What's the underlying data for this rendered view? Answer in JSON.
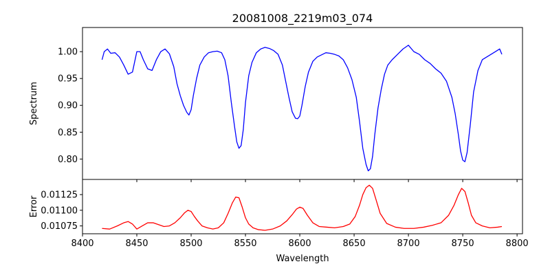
{
  "chart_data": [
    {
      "type": "line",
      "title": "20081008_2219m03_074",
      "xlabel": "",
      "ylabel": "Spectrum",
      "xlim": [
        8400,
        8805
      ],
      "ylim": [
        0.762,
        1.045
      ],
      "xticks": [
        8400,
        8450,
        8500,
        8550,
        8600,
        8650,
        8700,
        8750,
        8800
      ],
      "yticks": [
        0.8,
        0.85,
        0.9,
        0.95,
        1.0
      ],
      "ytick_labels": [
        "0.80",
        "0.85",
        "0.90",
        "0.95",
        "1.00"
      ],
      "grid": false,
      "series": [
        {
          "color": "#0000ff",
          "x": [
            8418,
            8420,
            8423,
            8426,
            8430,
            8434,
            8438,
            8442,
            8446,
            8450,
            8453,
            8456,
            8460,
            8464,
            8468,
            8472,
            8476,
            8480,
            8484,
            8487,
            8490,
            8493,
            8496,
            8498,
            8500,
            8502,
            8505,
            8508,
            8512,
            8516,
            8520,
            8524,
            8528,
            8531,
            8534,
            8537,
            8540,
            8542,
            8544,
            8546,
            8548,
            8550,
            8553,
            8556,
            8560,
            8564,
            8568,
            8572,
            8576,
            8580,
            8584,
            8587,
            8590,
            8593,
            8596,
            8598,
            8600,
            8602,
            8605,
            8608,
            8612,
            8616,
            8620,
            8624,
            8628,
            8632,
            8636,
            8640,
            8644,
            8648,
            8652,
            8655,
            8658,
            8661,
            8663,
            8665,
            8667,
            8669,
            8672,
            8675,
            8678,
            8681,
            8685,
            8690,
            8695,
            8700,
            8705,
            8710,
            8715,
            8720,
            8725,
            8730,
            8735,
            8740,
            8743,
            8746,
            8748,
            8750,
            8752,
            8754,
            8757,
            8760,
            8764,
            8768,
            8772,
            8776,
            8780,
            8784,
            8786
          ],
          "y": [
            0.985,
            1.0,
            1.005,
            0.997,
            0.998,
            0.99,
            0.975,
            0.958,
            0.962,
            1.0,
            1.0,
            0.985,
            0.968,
            0.965,
            0.985,
            1.0,
            1.005,
            0.996,
            0.972,
            0.94,
            0.918,
            0.9,
            0.887,
            0.882,
            0.892,
            0.918,
            0.95,
            0.975,
            0.99,
            0.998,
            1.0,
            1.001,
            0.998,
            0.985,
            0.955,
            0.905,
            0.86,
            0.832,
            0.82,
            0.825,
            0.855,
            0.905,
            0.955,
            0.98,
            0.998,
            1.005,
            1.008,
            1.006,
            1.002,
            0.995,
            0.975,
            0.945,
            0.915,
            0.888,
            0.876,
            0.875,
            0.88,
            0.9,
            0.935,
            0.962,
            0.982,
            0.99,
            0.994,
            0.998,
            0.997,
            0.995,
            0.992,
            0.985,
            0.97,
            0.948,
            0.915,
            0.87,
            0.82,
            0.79,
            0.778,
            0.782,
            0.805,
            0.845,
            0.895,
            0.93,
            0.958,
            0.975,
            0.985,
            0.995,
            1.005,
            1.012,
            1.0,
            0.995,
            0.985,
            0.978,
            0.968,
            0.96,
            0.945,
            0.915,
            0.885,
            0.845,
            0.815,
            0.798,
            0.795,
            0.812,
            0.865,
            0.925,
            0.965,
            0.985,
            0.99,
            0.995,
            1.0,
            1.005,
            0.995
          ]
        }
      ]
    },
    {
      "type": "line",
      "title": "",
      "xlabel": "Wavelength",
      "ylabel": "Error",
      "xlim": [
        8400,
        8805
      ],
      "ylim": [
        0.010625,
        0.011492
      ],
      "xticks": [
        8400,
        8450,
        8500,
        8550,
        8600,
        8650,
        8700,
        8750,
        8800
      ],
      "xtick_labels": [
        "8400",
        "8450",
        "8500",
        "8550",
        "8600",
        "8650",
        "8700",
        "8750",
        "8800"
      ],
      "yticks": [
        0.01075,
        0.011,
        0.01125
      ],
      "ytick_labels": [
        "0.01075",
        "0.01100",
        "0.01125"
      ],
      "grid": false,
      "series": [
        {
          "color": "#ff0000",
          "x": [
            8418,
            8425,
            8432,
            8438,
            8442,
            8446,
            8450,
            8455,
            8460,
            8465,
            8470,
            8475,
            8480,
            8485,
            8490,
            8494,
            8497,
            8500,
            8503,
            8506,
            8510,
            8515,
            8520,
            8525,
            8530,
            8534,
            8538,
            8541,
            8544,
            8547,
            8550,
            8553,
            8557,
            8562,
            8568,
            8575,
            8582,
            8588,
            8593,
            8597,
            8600,
            8603,
            8607,
            8612,
            8618,
            8625,
            8632,
            8640,
            8646,
            8651,
            8655,
            8658,
            8661,
            8664,
            8667,
            8670,
            8674,
            8680,
            8688,
            8696,
            8705,
            8714,
            8722,
            8730,
            8737,
            8742,
            8746,
            8749,
            8752,
            8755,
            8758,
            8762,
            8768,
            8775,
            8782,
            8786
          ],
          "y": [
            0.01071,
            0.0107,
            0.01075,
            0.0108,
            0.01082,
            0.01078,
            0.0107,
            0.01075,
            0.0108,
            0.0108,
            0.01077,
            0.01074,
            0.01075,
            0.0108,
            0.01088,
            0.01096,
            0.011,
            0.01098,
            0.0109,
            0.01083,
            0.01075,
            0.01072,
            0.0107,
            0.01072,
            0.0108,
            0.01095,
            0.01112,
            0.01121,
            0.0112,
            0.01105,
            0.01088,
            0.01078,
            0.01072,
            0.01069,
            0.01068,
            0.0107,
            0.01075,
            0.01083,
            0.01093,
            0.01102,
            0.01105,
            0.01103,
            0.01092,
            0.0108,
            0.01074,
            0.01073,
            0.01072,
            0.01074,
            0.01078,
            0.0109,
            0.01108,
            0.01125,
            0.01136,
            0.0114,
            0.01135,
            0.01118,
            0.01095,
            0.01079,
            0.01073,
            0.01071,
            0.01071,
            0.01073,
            0.01076,
            0.0108,
            0.01092,
            0.01108,
            0.01125,
            0.01135,
            0.0113,
            0.01112,
            0.01092,
            0.0108,
            0.01075,
            0.01072,
            0.01073,
            0.01074
          ]
        }
      ]
    }
  ]
}
